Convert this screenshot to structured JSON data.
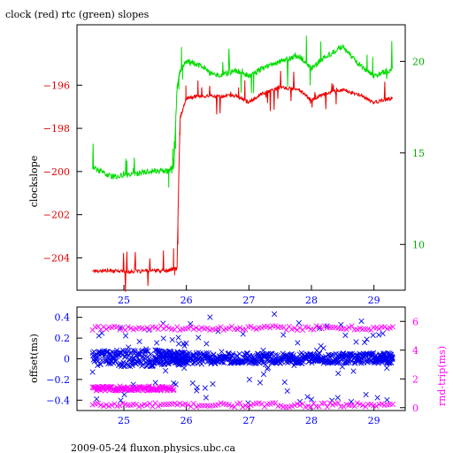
{
  "title": "clock (red) rtc (green) slopes",
  "footer": "2009-05-24 fluxon.physics.ubc.ca",
  "colors": {
    "clock": "#ee0000",
    "rtc": "#00dd00",
    "offset": "#0000ee",
    "roundtrip": "#ff00ff",
    "axis_black": "#000000",
    "axis_red": "#dd0000",
    "axis_green": "#00aa00",
    "axis_blue": "#0000ff",
    "axis_magenta": "#ff00ff"
  },
  "chart_data": [
    {
      "type": "line",
      "title": "clock (red) rtc (green) slopes",
      "ylabel": "clockslope",
      "x_ticks": [
        25,
        26,
        27,
        28,
        29
      ],
      "xlim": [
        24.25,
        29.5
      ],
      "y_left": {
        "lim": [
          -205.5,
          -193.2
        ],
        "ticks": [
          -204,
          -202,
          -200,
          -198,
          -196
        ],
        "color": "red"
      },
      "y_right": {
        "lim": [
          7.5,
          22.0
        ],
        "ticks": [
          10,
          15,
          20
        ],
        "color": "green"
      },
      "series": [
        {
          "name": "clock",
          "axis": "left",
          "color": "#ee0000",
          "x": [
            24.5,
            24.8,
            25.1,
            25.4,
            25.7,
            25.8,
            25.85,
            25.88,
            25.9,
            26.0,
            26.2,
            26.5,
            26.8,
            27.0,
            27.2,
            27.5,
            27.8,
            28.0,
            28.2,
            28.5,
            28.8,
            29.0,
            29.3
          ],
          "y": [
            -204.6,
            -204.6,
            -204.65,
            -204.6,
            -204.6,
            -204.5,
            -204.5,
            -200.0,
            -197.5,
            -196.6,
            -196.5,
            -196.5,
            -196.5,
            -196.8,
            -196.4,
            -196.1,
            -196.2,
            -196.7,
            -196.4,
            -196.2,
            -196.5,
            -196.8,
            -196.6
          ]
        },
        {
          "name": "rtc",
          "axis": "right",
          "color": "#00dd00",
          "x": [
            24.5,
            24.8,
            25.1,
            25.4,
            25.7,
            25.8,
            25.85,
            25.9,
            26.0,
            26.2,
            26.5,
            26.8,
            27.0,
            27.2,
            27.5,
            27.8,
            28.0,
            28.2,
            28.5,
            28.8,
            29.0,
            29.3
          ],
          "y": [
            14.2,
            13.7,
            13.8,
            14.0,
            14.0,
            14.3,
            18.5,
            19.5,
            20.0,
            19.8,
            19.2,
            19.5,
            19.2,
            19.6,
            20.0,
            20.3,
            19.6,
            20.2,
            20.8,
            19.7,
            19.2,
            19.6
          ]
        }
      ]
    },
    {
      "type": "scatter",
      "ylabel_left": "offset(ms)",
      "ylabel_right": "rnd-trip(ms)",
      "x_ticks": [
        25,
        26,
        27,
        28,
        29
      ],
      "xlim": [
        24.25,
        29.5
      ],
      "y_left": {
        "lim": [
          -0.5,
          0.5
        ],
        "ticks": [
          -0.4,
          -0.2,
          0,
          0.2,
          0.4
        ],
        "color": "blue"
      },
      "y_right": {
        "lim": [
          -0.2,
          7.0
        ],
        "ticks": [
          0,
          2,
          4,
          6
        ],
        "color": "magenta"
      },
      "series": [
        {
          "name": "offset",
          "axis": "left",
          "color": "#0000ee",
          "x": [
            24.5,
            25.0,
            25.5,
            25.8,
            26.0,
            26.5,
            27.0,
            27.5,
            28.0,
            28.5,
            29.0,
            29.3
          ],
          "y": [
            0.0,
            0.0,
            0.0,
            0.0,
            0.0,
            0.0,
            0.0,
            0.0,
            0.0,
            0.0,
            0.0,
            0.0
          ],
          "spread": [
            0.07,
            0.08,
            0.08,
            0.07,
            0.06,
            0.05,
            0.05,
            0.05,
            0.05,
            0.05,
            0.05,
            0.05
          ]
        },
        {
          "name": "roundtrip",
          "axis": "right",
          "color": "#ff00ff",
          "bands": [
            {
              "x": [
                24.5,
                29.3
              ],
              "y": 0.15
            },
            {
              "x": [
                24.5,
                25.8
              ],
              "y": 1.3
            },
            {
              "x": [
                24.5,
                29.3
              ],
              "y": 5.5
            }
          ]
        }
      ]
    }
  ]
}
